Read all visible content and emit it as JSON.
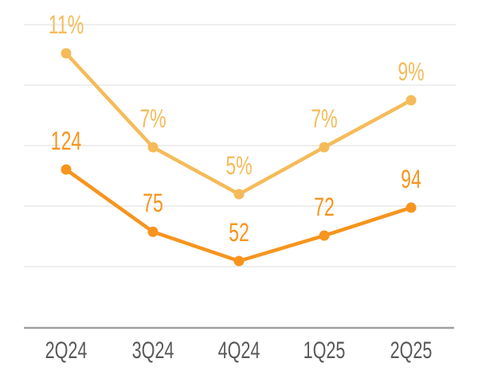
{
  "chart_data": {
    "type": "line",
    "title": "",
    "categories": [
      "2Q24",
      "3Q24",
      "4Q24",
      "1Q25",
      "2Q25"
    ],
    "series": [
      {
        "name": "percent-series",
        "color": "#F5BB5A",
        "values": [
          11,
          7,
          5,
          7,
          9
        ],
        "labels": [
          "11%",
          "7%",
          "5%",
          "7%",
          "9%"
        ]
      },
      {
        "name": "count-series",
        "color": "#F7941D",
        "values": [
          124,
          75,
          52,
          72,
          94
        ],
        "labels": [
          "124",
          "75",
          "52",
          "72",
          "94"
        ]
      }
    ],
    "legend": false,
    "grid": true,
    "axis": {
      "gridline_color": "#E9E9E9",
      "axis_line_color": "#9D9FA2",
      "category_label_color": "#58595B"
    },
    "background": "#FFFFFF"
  }
}
